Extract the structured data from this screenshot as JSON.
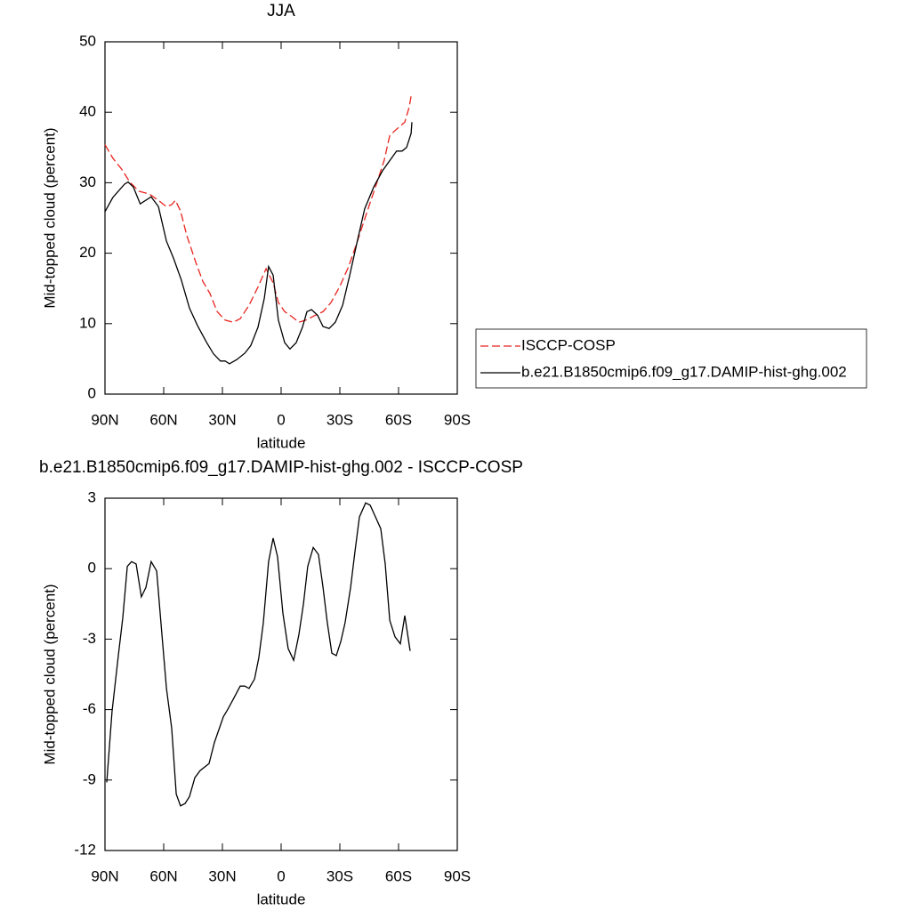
{
  "chart_data": [
    {
      "type": "line",
      "title": "JJA",
      "xlabel": "latitude",
      "ylabel": "Mid-topped cloud (percent)",
      "xlim": [
        90,
        -90
      ],
      "xticks": [
        {
          "value": 90,
          "label": "90N"
        },
        {
          "value": 60,
          "label": "60N"
        },
        {
          "value": 30,
          "label": "30N"
        },
        0,
        {
          "value": -30,
          "label": "30S"
        },
        {
          "value": -60,
          "label": "60S"
        },
        {
          "value": -90,
          "label": "90S"
        }
      ],
      "ylim": [
        0,
        50
      ],
      "yticks": [
        0,
        10,
        20,
        30,
        40,
        50
      ],
      "legend": "right",
      "series": [
        {
          "name": "ISCCP-COSP",
          "color": "#e8231f",
          "dashed": true,
          "x": [
            90,
            86,
            81.4,
            77.3,
            72.7,
            67.3,
            62.7,
            58.6,
            55.9,
            54,
            51.4,
            48.2,
            43.6,
            40,
            36.4,
            32.7,
            28.6,
            24.5,
            20.9,
            16.4,
            11.8,
            7.7,
            4.1,
            1.4,
            -1.8,
            -5.5,
            -9.1,
            -12.7,
            -16.8,
            -21.4,
            -25.5,
            -30,
            -34.5,
            -39.1,
            -43.6,
            -48.2,
            -52.7,
            -55.5,
            -59,
            -63.2,
            -65.5,
            -66.4
          ],
          "values": [
            35.4,
            33.5,
            31.9,
            30.1,
            28.8,
            28.4,
            27.5,
            26.6,
            26.9,
            27.5,
            26.0,
            22.5,
            18.7,
            16.0,
            14.3,
            11.7,
            10.5,
            10.2,
            10.7,
            12.6,
            15.2,
            17.8,
            15.8,
            13.0,
            11.7,
            11.0,
            10.2,
            10.5,
            11.1,
            11.7,
            13.0,
            15.3,
            18.1,
            21.8,
            25.6,
            29.4,
            33.2,
            36.7,
            37.6,
            38.6,
            40.8,
            42.3
          ]
        },
        {
          "name": "b.e21.B1850cmip6.f09_g17.DAMIP-hist-ghg.002",
          "color": "#000000",
          "dashed": false,
          "x": [
            90,
            86,
            80,
            78.2,
            75.5,
            72,
            66.4,
            62.7,
            58.6,
            55,
            51,
            46.8,
            42.7,
            38,
            34.5,
            31,
            28.6,
            26.4,
            22.7,
            18.6,
            15.5,
            11.8,
            8.6,
            6.4,
            4.1,
            1.4,
            -1.8,
            -4.5,
            -7.7,
            -10.9,
            -13.2,
            -15.5,
            -18.6,
            -21.4,
            -24.5,
            -27.7,
            -31.4,
            -35,
            -39,
            -42.7,
            -47.3,
            -51.8,
            -56.4,
            -59,
            -61.8,
            -64.1,
            -66.4,
            -66.8
          ],
          "values": [
            25.9,
            27.9,
            29.8,
            30.1,
            29.4,
            27.0,
            28.0,
            26.6,
            21.7,
            19.3,
            16.2,
            12.2,
            9.7,
            7.3,
            5.7,
            4.7,
            4.7,
            4.3,
            4.9,
            5.8,
            6.9,
            9.5,
            13.6,
            18.1,
            16.9,
            10.5,
            7.3,
            6.4,
            7.3,
            9.5,
            11.7,
            12.0,
            11.2,
            9.6,
            9.3,
            10.2,
            12.6,
            16.8,
            21.8,
            26.3,
            29.4,
            31.7,
            33.5,
            34.5,
            34.5,
            35.0,
            37.0,
            38.6
          ]
        }
      ]
    },
    {
      "type": "line",
      "title": "b.e21.B1850cmip6.f09_g17.DAMIP-hist-ghg.002 - ISCCP-COSP",
      "xlabel": "latitude",
      "ylabel": "Mid-topped cloud (percent)",
      "xlim": [
        90,
        -90
      ],
      "xticks": [
        {
          "value": 90,
          "label": "90N"
        },
        {
          "value": 60,
          "label": "60N"
        },
        {
          "value": 30,
          "label": "30N"
        },
        0,
        {
          "value": -30,
          "label": "30S"
        },
        {
          "value": -60,
          "label": "60S"
        },
        {
          "value": -90,
          "label": "90S"
        }
      ],
      "ylim": [
        -12,
        3
      ],
      "yticks": [
        3,
        0,
        -3,
        -6,
        -9,
        -12
      ],
      "series": [
        {
          "color": "#000000",
          "dashed": false,
          "x": [
            89.1,
            86.4,
            83.2,
            80.9,
            78.6,
            76.4,
            74.1,
            71.4,
            69.1,
            66.4,
            63.6,
            61.4,
            58.6,
            55.9,
            53.6,
            51.4,
            49.1,
            46.8,
            44.1,
            41.4,
            36.8,
            34.1,
            29.5,
            27.3,
            24.1,
            20.9,
            18.6,
            16.4,
            13.6,
            11.4,
            9.1,
            6.4,
            4.1,
            1.8,
            -0.9,
            -3.6,
            -6.4,
            -9.1,
            -11.4,
            -13.6,
            -16.4,
            -19.1,
            -21.4,
            -23.6,
            -25.9,
            -28.2,
            -30.5,
            -32.7,
            -35.5,
            -37.7,
            -40,
            -43.2,
            -45.5,
            -47.7,
            -50.9,
            -53.2,
            -55.5,
            -58.2,
            -60.9,
            -63.2,
            -65.9
          ],
          "values": [
            -9.1,
            -6.1,
            -3.7,
            -2.1,
            0.1,
            0.3,
            0.2,
            -1.2,
            -0.8,
            0.3,
            -0.1,
            -2.3,
            -5.1,
            -6.8,
            -9.6,
            -10.1,
            -10.0,
            -9.7,
            -8.9,
            -8.6,
            -8.3,
            -7.4,
            -6.3,
            -6.0,
            -5.5,
            -5.0,
            -5.0,
            -5.1,
            -4.7,
            -3.8,
            -2.3,
            0.3,
            1.3,
            0.5,
            -1.9,
            -3.4,
            -3.9,
            -2.8,
            -1.5,
            0.1,
            0.9,
            0.6,
            -0.8,
            -2.3,
            -3.6,
            -3.7,
            -3.1,
            -2.3,
            -0.8,
            0.7,
            2.2,
            2.8,
            2.7,
            2.3,
            1.7,
            0.2,
            -2.2,
            -2.9,
            -3.2,
            -2.0,
            -3.5
          ]
        }
      ]
    }
  ]
}
